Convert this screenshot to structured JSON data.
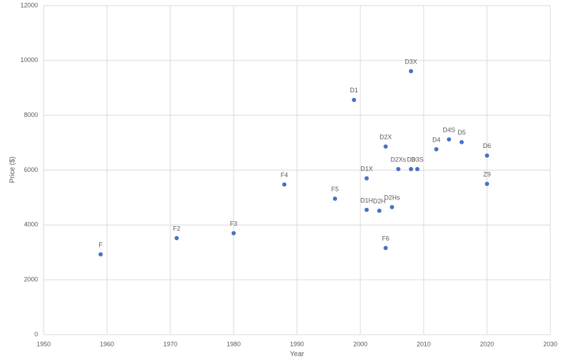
{
  "chart_data": {
    "type": "scatter",
    "x_label": "Year",
    "y_label": "Price ($)",
    "labels": [
      "F",
      "F2",
      "F3",
      "F4",
      "F5",
      "D1",
      "D1X",
      "D1H",
      "D2H",
      "D2Hs",
      "F6",
      "D2X",
      "D2Xs",
      "D3",
      "D3S",
      "D3X",
      "D4",
      "D4S",
      "D5",
      "D6",
      "Z9"
    ],
    "x": [
      1959,
      1971,
      1980,
      1988,
      1996,
      1999,
      2001,
      2001,
      2003,
      2005,
      2004,
      2004,
      2006,
      2008,
      2009,
      2008,
      2012,
      2014,
      2016,
      2020,
      2020
    ],
    "y": [
      2930,
      3520,
      3700,
      5475,
      4960,
      8560,
      5700,
      4550,
      4520,
      4650,
      3160,
      6860,
      6040,
      6040,
      6040,
      9610,
      6760,
      7120,
      7020,
      6530,
      5500
    ],
    "color": "#4472c4",
    "xlim": [
      1950,
      2030
    ],
    "xticks": [
      1950,
      1960,
      1970,
      1980,
      1990,
      2000,
      2010,
      2020,
      2030
    ],
    "ylim": [
      0,
      12000
    ],
    "yticks": [
      0,
      2000,
      4000,
      6000,
      8000,
      10000,
      12000
    ],
    "grid": true
  }
}
